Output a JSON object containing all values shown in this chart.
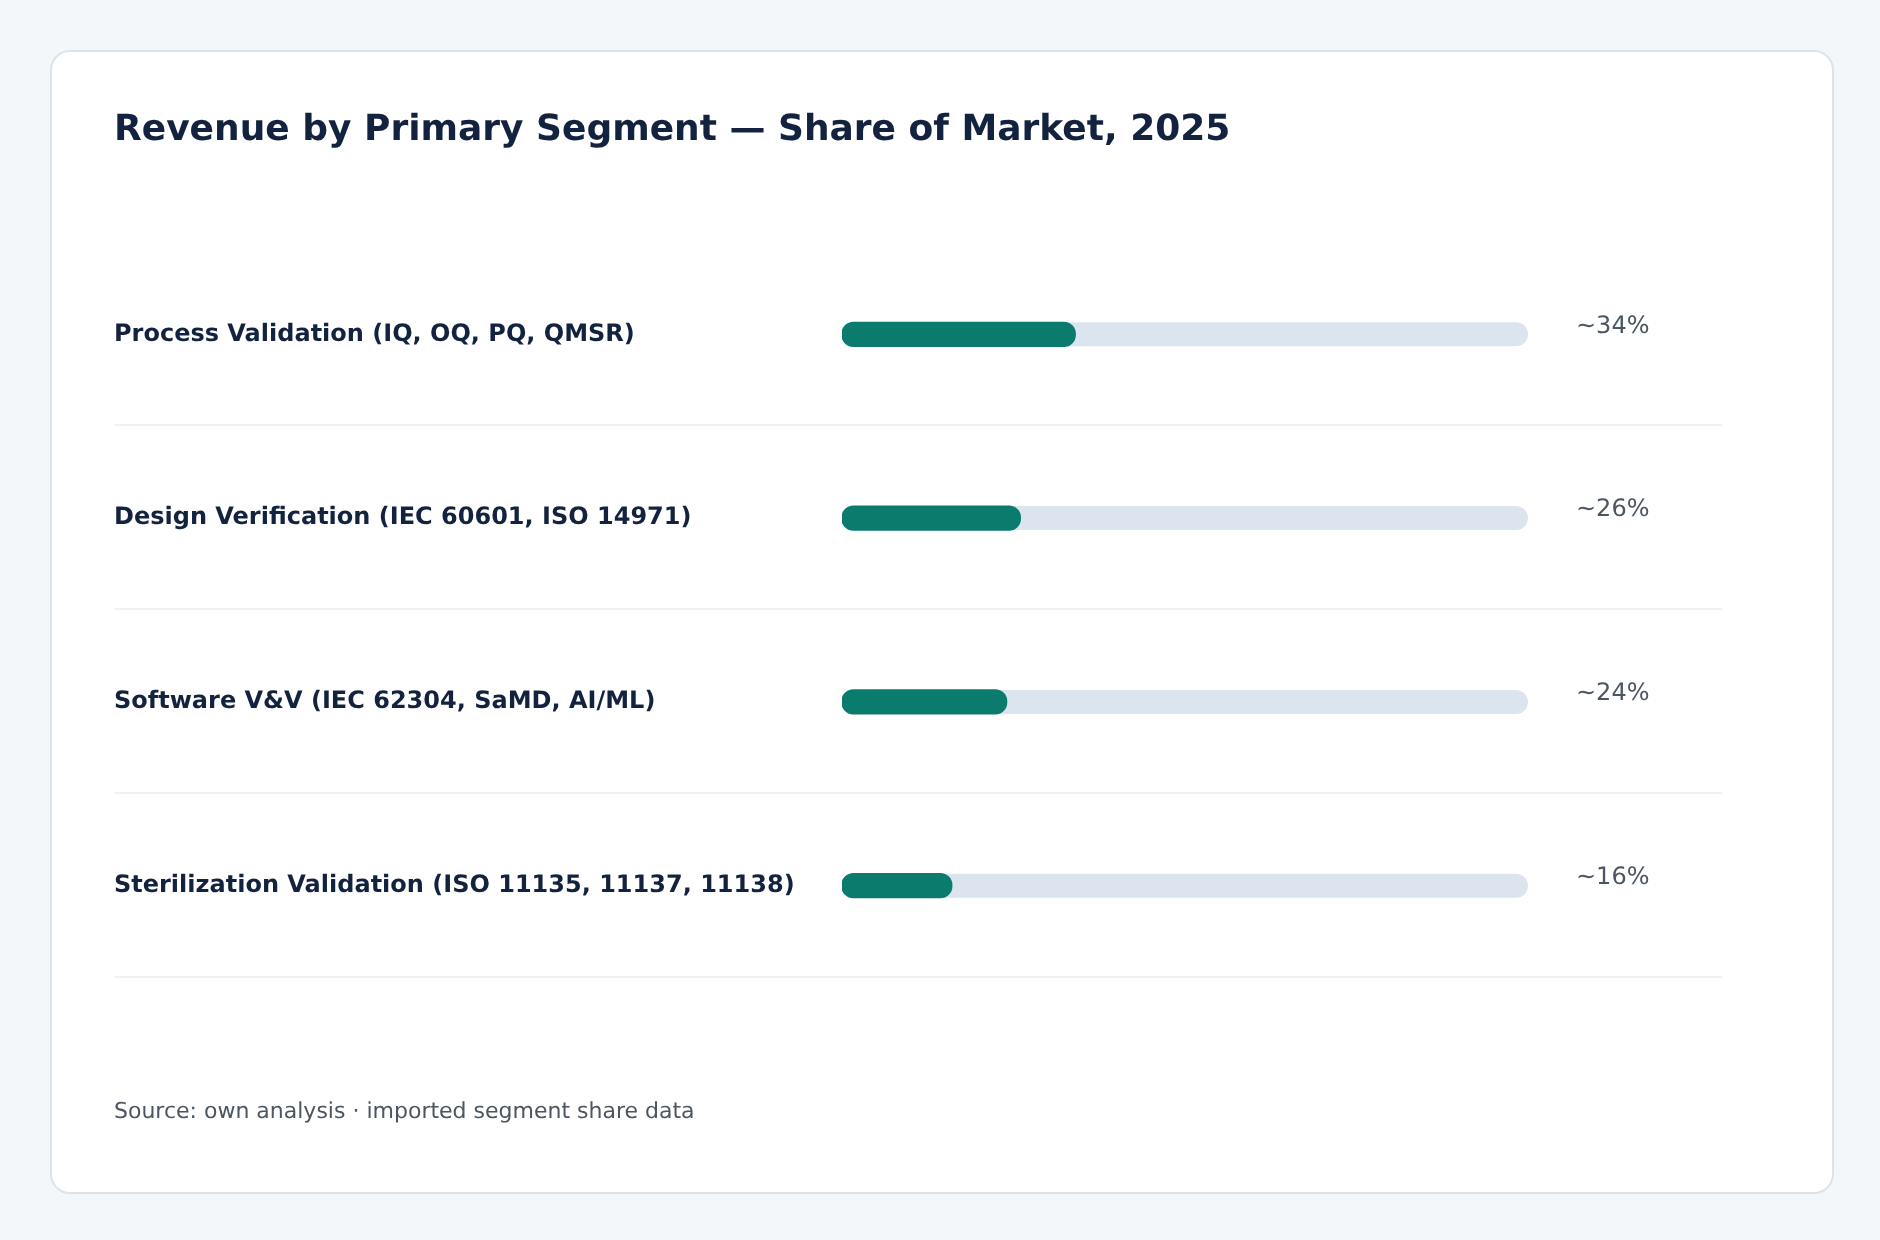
{
  "chart_data": {
    "type": "bar",
    "orientation": "horizontal",
    "title": "Revenue by Primary Segment — Share of Market, 2025",
    "categories": [
      "Process Validation (IQ, OQ, PQ, QMSR)",
      "Design Verification (IEC 60601, ISO 14971)",
      "Software V&V (IEC 62304, SaMD, AI/ML)",
      "Sterilization Validation (ISO 11135, 11137, 11138)"
    ],
    "values": [
      34,
      26,
      24,
      16
    ],
    "value_labels": [
      "~34%",
      "~26%",
      "~24%",
      "~16%"
    ],
    "color": "#0b7b6e",
    "xlim": [
      0,
      100
    ],
    "tick_labels": "y",
    "grid": "y",
    "legend": false,
    "annotations": [
      "Source: own analysis · imported segment share data"
    ]
  }
}
